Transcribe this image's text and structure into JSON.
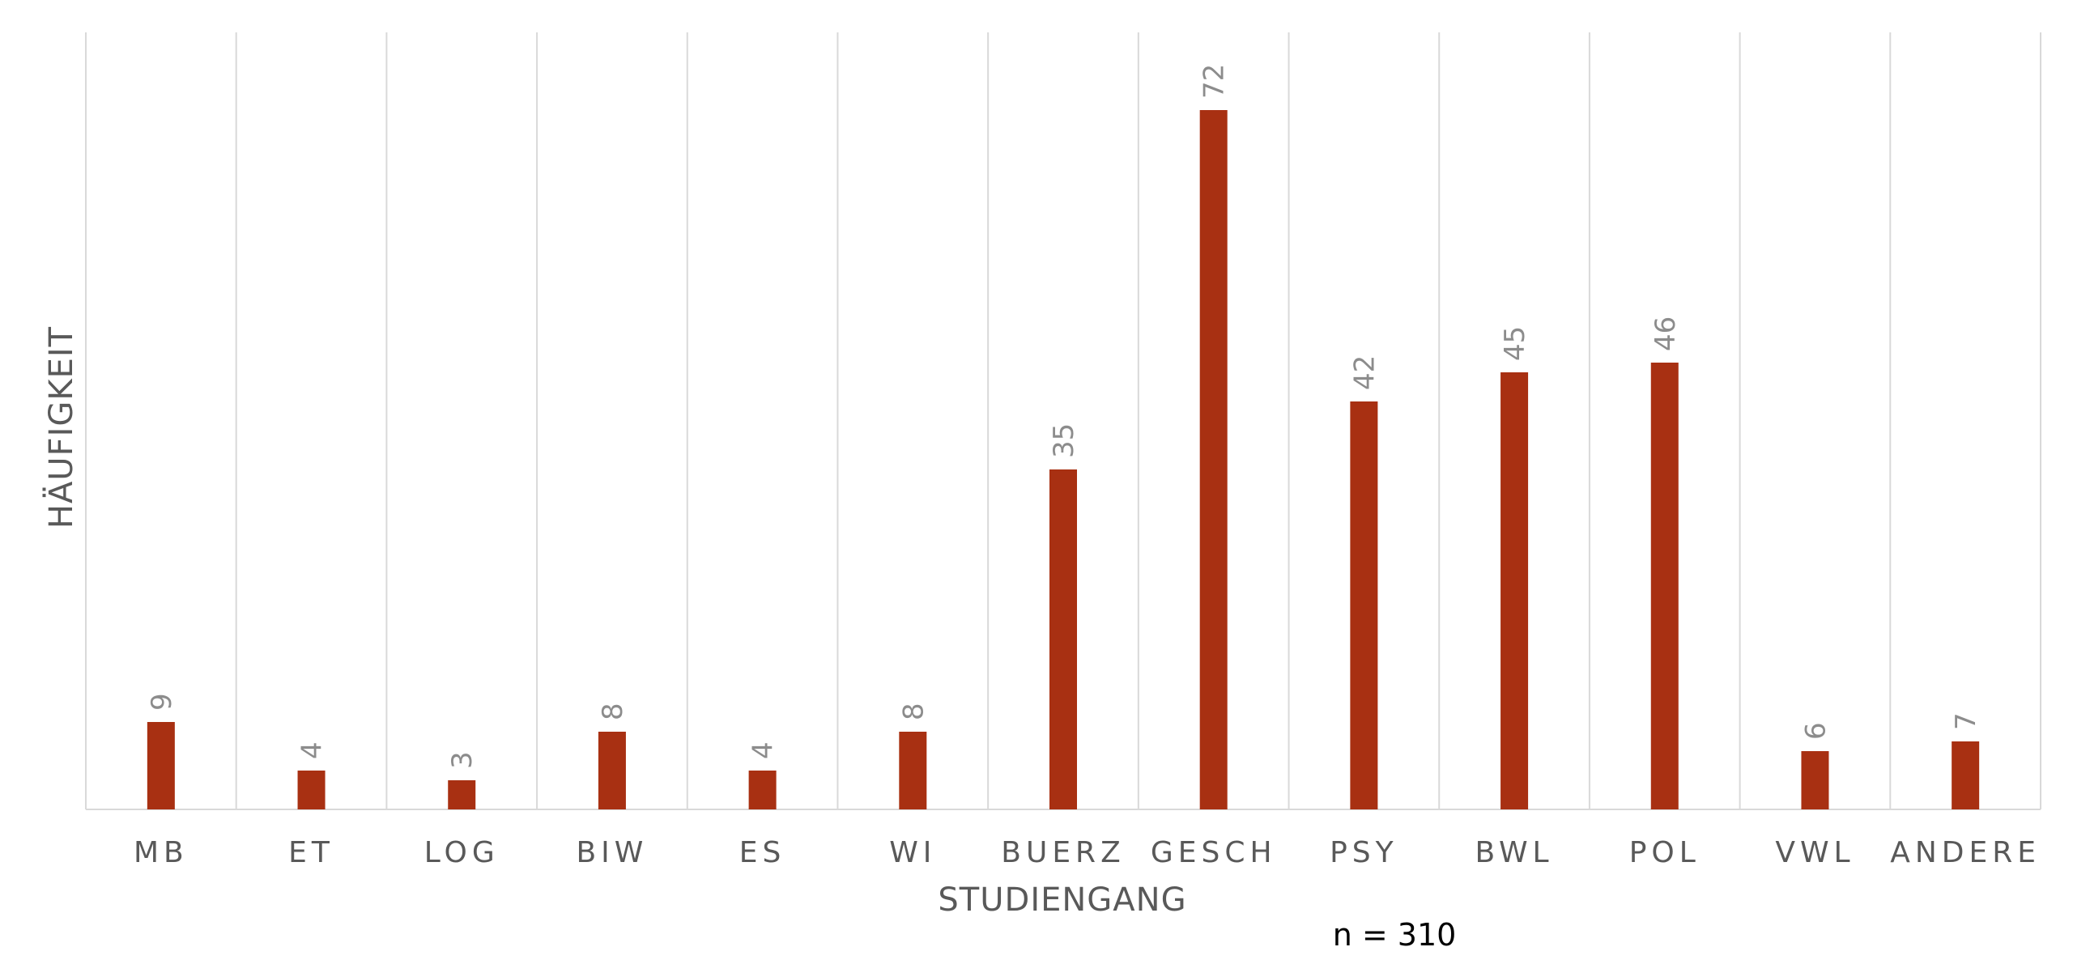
{
  "chart_data": {
    "type": "bar",
    "categories": [
      "MB",
      "ET",
      "LOG",
      "BIW",
      "ES",
      "WI",
      "BUERZ",
      "GESCH",
      "PSY",
      "BWL",
      "POL",
      "VWL",
      "ANDERE"
    ],
    "values": [
      9,
      4,
      3,
      8,
      4,
      8,
      35,
      72,
      42,
      45,
      46,
      6,
      7
    ],
    "title": "",
    "xlabel": "STUDIENGANG",
    "ylabel": "HÄUFIGKEIT",
    "ylim": [
      0,
      80
    ],
    "grid": "vertical category separators",
    "data_labels": true,
    "legend": "none",
    "bar_color": "#A83012",
    "data_label_color": "#8C8C8C",
    "tick_label_color": "#595959",
    "gridline_color": "#D9D9D9"
  },
  "note": "n = 310"
}
